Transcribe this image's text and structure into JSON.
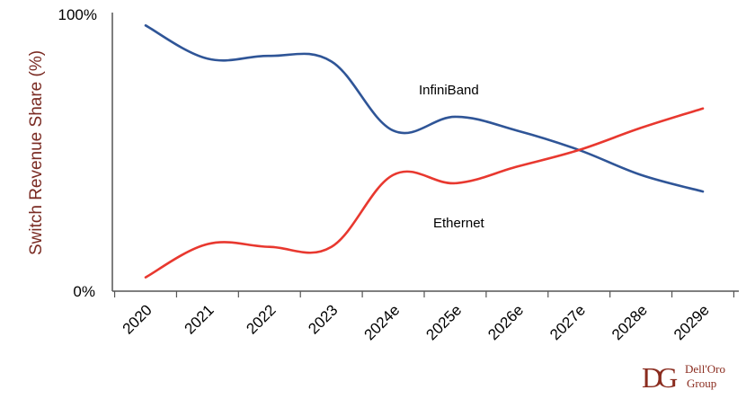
{
  "chart_data": {
    "type": "line",
    "categories": [
      "2020",
      "2021",
      "2022",
      "2023",
      "2024e",
      "2025e",
      "2026e",
      "2027e",
      "2028e",
      "2029e"
    ],
    "series": [
      {
        "name": "InfiniBand",
        "color": "#2f5597",
        "values": [
          96,
          84,
          85,
          83,
          58,
          63,
          58,
          51,
          42,
          36
        ]
      },
      {
        "name": "Ethernet",
        "color": "#e8382f",
        "values": [
          5,
          17,
          16,
          16,
          42,
          39,
          45,
          51,
          59,
          66
        ]
      }
    ],
    "ylabel": "Switch Revenue Share (%)",
    "ylim": [
      0,
      100
    ],
    "y_tick_labels": [
      "0%",
      "100%"
    ],
    "grid": false
  },
  "logo": {
    "monogram": "DG",
    "line1": "Dell'Oro",
    "line2": "Group",
    "color": "#8a2b1e"
  }
}
